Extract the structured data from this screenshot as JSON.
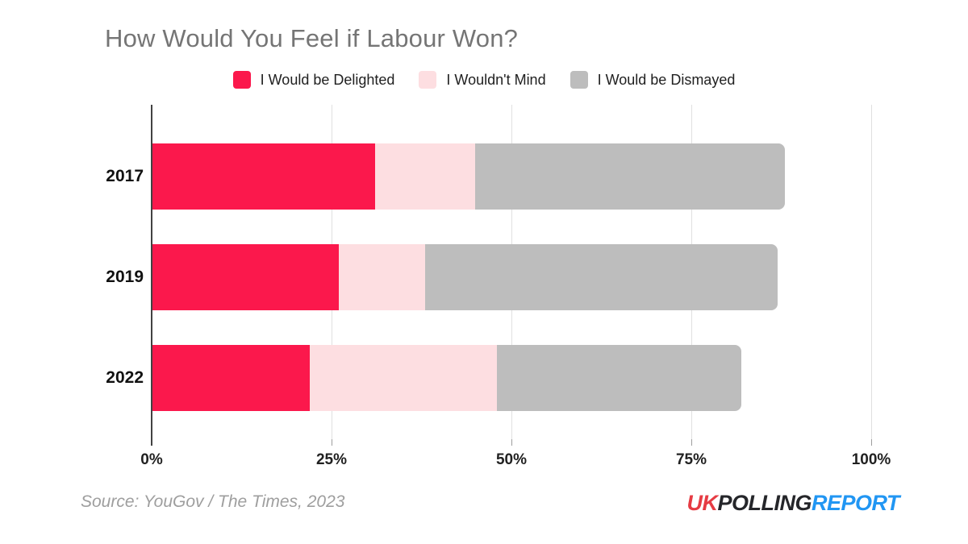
{
  "title": "How Would You Feel if Labour Won?",
  "chart_data": {
    "type": "bar",
    "orientation": "horizontal",
    "stacked": true,
    "title": "How Would You Feel if Labour Won?",
    "categories": [
      "2017",
      "2019",
      "2022"
    ],
    "series": [
      {
        "name": "I Would be Delighted",
        "color": "#fb184c",
        "values": [
          31,
          26,
          22
        ]
      },
      {
        "name": "I Wouldn't Mind",
        "color": "#fddee1",
        "values": [
          14,
          12,
          26
        ]
      },
      {
        "name": "I Would be Dismayed",
        "color": "#bdbdbd",
        "values": [
          43,
          49,
          34
        ]
      }
    ],
    "totals": [
      88,
      87,
      82
    ],
    "xlabel": "",
    "ylabel": "",
    "xlim": [
      0,
      100
    ],
    "x_ticks": [
      0,
      25,
      50,
      75,
      100
    ],
    "x_tick_labels": [
      "0%",
      "25%",
      "50%",
      "75%",
      "100%"
    ],
    "grid": true,
    "legend_position": "top"
  },
  "footer": {
    "source": "Source: YouGov / The Times, 2023",
    "logo": {
      "uk": "UK",
      "polling": "POLLING",
      "report": "REPORT"
    }
  },
  "colors": {
    "delighted": "#fb184c",
    "wouldnt_mind": "#fddee1",
    "dismayed": "#bdbdbd",
    "title_text": "#757575",
    "axis_text": "#212121",
    "gridline": "#e0e0e0",
    "zero_line": "#424242",
    "source_text": "#9e9e9e",
    "logo_uk": "#e63b43",
    "logo_polling": "#25262a",
    "logo_report": "#2196f3"
  }
}
